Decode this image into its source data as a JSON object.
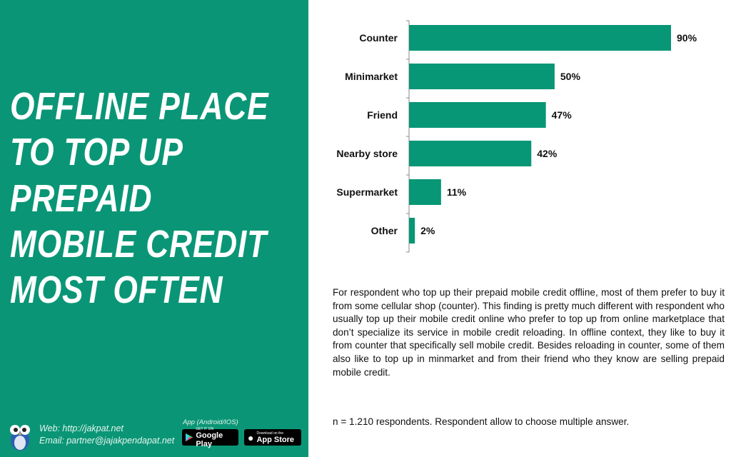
{
  "title_lines": [
    "OFFLINE PLACE",
    "TO TOP UP",
    "PREPAID",
    "MOBILE CREDIT",
    "MOST OFTEN"
  ],
  "footer": {
    "web": "Web: http://jakpat.net",
    "email": "Email:  partner@jajakpendapat.net",
    "app_label": "App (Android/IOS)",
    "google_play": {
      "small": "GET IT ON",
      "big": "Google Play"
    },
    "app_store": {
      "small": "Download on the",
      "big": "App Store"
    }
  },
  "colors": {
    "brand": "#0a9676",
    "bar": "#079676"
  },
  "chart_data": {
    "type": "bar",
    "orientation": "horizontal",
    "categories": [
      "Counter",
      "Minimarket",
      "Friend",
      "Nearby store",
      "Supermarket",
      "Other"
    ],
    "values": [
      90,
      50,
      47,
      42,
      11,
      2
    ],
    "labels": [
      "90%",
      "50%",
      "47%",
      "42%",
      "11%",
      "2%"
    ],
    "unit": "%",
    "xlim": [
      0,
      100
    ],
    "grid": false
  },
  "description": "For respondent who top up their prepaid mobile credit offline, most of them prefer to buy it from some cellular shop (counter). This finding is pretty much different with respondent who usually top up their mobile credit online who prefer to top up from online marketplace that don’t specialize its service in mobile credit reloading. In offline context, they like to buy it from counter that specifically sell mobile credit. Besides reloading in counter, some of them also like to top up in minmarket and from their friend who they know are selling prepaid mobile credit.",
  "note": "n = 1.210 respondents. Respondent allow to choose multiple answer."
}
